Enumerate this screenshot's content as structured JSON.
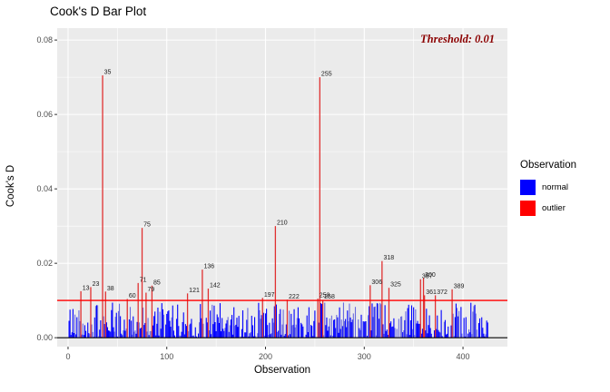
{
  "title": "Cook's D Bar Plot",
  "axes": {
    "x": "Observation",
    "y": "Cook's D"
  },
  "annotation": {
    "threshold_label": "Threshold: 0.01",
    "color": "#8B0000"
  },
  "legend": {
    "title": "Observation",
    "items": [
      {
        "label": "normal",
        "color": "#0000FF"
      },
      {
        "label": "outlier",
        "color": "#FF0000"
      }
    ]
  },
  "chart_data": {
    "type": "bar",
    "title": "Cook's D Bar Plot",
    "xlabel": "Observation",
    "ylabel": "Cook's D",
    "xlim": [
      -11,
      445
    ],
    "ylim": [
      -0.0024,
      0.0832
    ],
    "x_ticks": [
      {
        "label": "0",
        "value": 0
      },
      {
        "label": "100",
        "value": 100
      },
      {
        "label": "200",
        "value": 200
      },
      {
        "label": "300",
        "value": 300
      },
      {
        "label": "400",
        "value": 400
      }
    ],
    "y_ticks": [
      {
        "label": "0.00",
        "value": 0.0
      },
      {
        "label": "0.02",
        "value": 0.02
      },
      {
        "label": "0.04",
        "value": 0.04
      },
      {
        "label": "0.06",
        "value": 0.06
      },
      {
        "label": "0.08",
        "value": 0.08
      }
    ],
    "x_minor": [
      50,
      150,
      250,
      350
    ],
    "y_minor": [
      0.01,
      0.03,
      0.05,
      0.07
    ],
    "threshold": {
      "value": 0.01,
      "label": "Threshold: 0.01"
    },
    "outliers": [
      {
        "obs": 13,
        "value": 0.0125
      },
      {
        "obs": 23,
        "value": 0.0136
      },
      {
        "obs": 35,
        "value": 0.0705
      },
      {
        "obs": 38,
        "value": 0.0124
      },
      {
        "obs": 60,
        "value": 0.0104
      },
      {
        "obs": 71,
        "value": 0.0147
      },
      {
        "obs": 75,
        "value": 0.0295
      },
      {
        "obs": 79,
        "value": 0.0121
      },
      {
        "obs": 85,
        "value": 0.014
      },
      {
        "obs": 121,
        "value": 0.0119
      },
      {
        "obs": 136,
        "value": 0.0183
      },
      {
        "obs": 142,
        "value": 0.0132
      },
      {
        "obs": 197,
        "value": 0.0107
      },
      {
        "obs": 210,
        "value": 0.03
      },
      {
        "obs": 222,
        "value": 0.0102
      },
      {
        "obs": 253,
        "value": 0.0105
      },
      {
        "obs": 255,
        "value": 0.07
      },
      {
        "obs": 258,
        "value": 0.0101
      },
      {
        "obs": 306,
        "value": 0.0141
      },
      {
        "obs": 318,
        "value": 0.0206
      },
      {
        "obs": 325,
        "value": 0.0134
      },
      {
        "obs": 357,
        "value": 0.0157
      },
      {
        "obs": 360,
        "value": 0.016
      },
      {
        "obs": 361,
        "value": 0.0114
      },
      {
        "obs": 372,
        "value": 0.0114
      },
      {
        "obs": 389,
        "value": 0.013
      }
    ],
    "normal_bars": {
      "count": 425,
      "seed": 42,
      "max_value": 0.0095,
      "note": "sub-threshold bar heights are visual noise below 0.01; regenerated pseudo-randomly"
    },
    "colors": {
      "normal": "#0000FF",
      "normal_light": "#6B6BDE",
      "outlier": "#E03131",
      "panel": "#EBEBEB",
      "grid": "#FFFFFF",
      "threshold_line": "#FF0000",
      "baseline": "#000000",
      "axis_text": "#4D4D4D",
      "label_text": "#1A1A1A",
      "annotation": "#8B0000"
    },
    "legend_position": "right",
    "grid": true
  }
}
